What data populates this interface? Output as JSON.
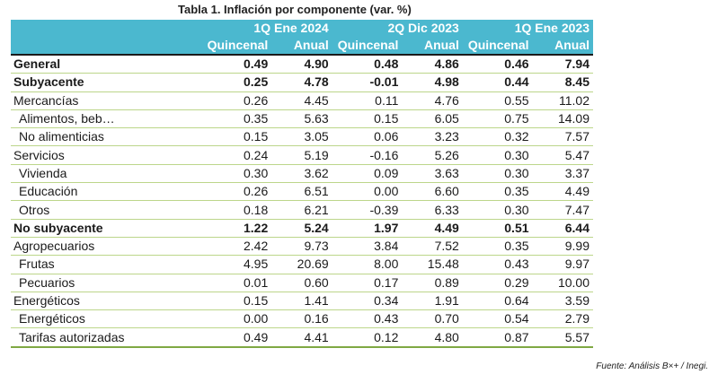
{
  "title": "Tabla 1. Inflación por componente (var. %)",
  "header": {
    "groups": [
      "1Q Ene 2024",
      "2Q Dic 2023",
      "1Q Ene 2023"
    ],
    "sub": [
      "Quincenal",
      "Anual"
    ]
  },
  "rows": [
    {
      "label": "General",
      "bold": true,
      "indent": false,
      "values": [
        "0.49",
        "4.90",
        "0.48",
        "4.86",
        "0.46",
        "7.94"
      ]
    },
    {
      "label": "Subyacente",
      "bold": true,
      "indent": false,
      "values": [
        "0.25",
        "4.78",
        "-0.01",
        "4.98",
        "0.44",
        "8.45"
      ]
    },
    {
      "label": "Mercancías",
      "bold": false,
      "indent": false,
      "values": [
        "0.26",
        "4.45",
        "0.11",
        "4.76",
        "0.55",
        "11.02"
      ]
    },
    {
      "label": "Alimentos, beb…",
      "bold": false,
      "indent": true,
      "values": [
        "0.35",
        "5.63",
        "0.15",
        "6.05",
        "0.75",
        "14.09"
      ]
    },
    {
      "label": "No alimenticias",
      "bold": false,
      "indent": true,
      "values": [
        "0.15",
        "3.05",
        "0.06",
        "3.23",
        "0.32",
        "7.57"
      ]
    },
    {
      "label": "Servicios",
      "bold": false,
      "indent": false,
      "values": [
        "0.24",
        "5.19",
        "-0.16",
        "5.26",
        "0.30",
        "5.47"
      ]
    },
    {
      "label": "Vivienda",
      "bold": false,
      "indent": true,
      "values": [
        "0.30",
        "3.62",
        "0.09",
        "3.63",
        "0.30",
        "3.37"
      ]
    },
    {
      "label": "Educación",
      "bold": false,
      "indent": true,
      "values": [
        "0.26",
        "6.51",
        "0.00",
        "6.60",
        "0.35",
        "4.49"
      ]
    },
    {
      "label": "Otros",
      "bold": false,
      "indent": true,
      "values": [
        "0.18",
        "6.21",
        "-0.39",
        "6.33",
        "0.30",
        "7.47"
      ]
    },
    {
      "label": "No subyacente",
      "bold": true,
      "indent": false,
      "values": [
        "1.22",
        "5.24",
        "1.97",
        "4.49",
        "0.51",
        "6.44"
      ]
    },
    {
      "label": "Agropecuarios",
      "bold": false,
      "indent": false,
      "values": [
        "2.42",
        "9.73",
        "3.84",
        "7.52",
        "0.35",
        "9.99"
      ]
    },
    {
      "label": "Frutas",
      "bold": false,
      "indent": true,
      "values": [
        "4.95",
        "20.69",
        "8.00",
        "15.48",
        "0.43",
        "9.97"
      ]
    },
    {
      "label": "Pecuarios",
      "bold": false,
      "indent": true,
      "values": [
        "0.01",
        "0.60",
        "0.17",
        "0.89",
        "0.29",
        "10.00"
      ]
    },
    {
      "label": "Energéticos",
      "bold": false,
      "indent": false,
      "values": [
        "0.15",
        "1.41",
        "0.34",
        "1.91",
        "0.64",
        "3.59"
      ]
    },
    {
      "label": "Energéticos",
      "bold": false,
      "indent": true,
      "values": [
        "0.00",
        "0.16",
        "0.43",
        "0.70",
        "0.54",
        "2.79"
      ]
    },
    {
      "label": "Tarifas autorizadas",
      "bold": false,
      "indent": true,
      "values": [
        "0.49",
        "4.41",
        "0.12",
        "4.80",
        "0.87",
        "5.57"
      ]
    }
  ],
  "source": "Fuente: Análisis B×+ /  Inegi.",
  "colors": {
    "header_bg": "#4bb8cf",
    "header_text": "#ffffff",
    "row_border": "#bcd68a"
  }
}
